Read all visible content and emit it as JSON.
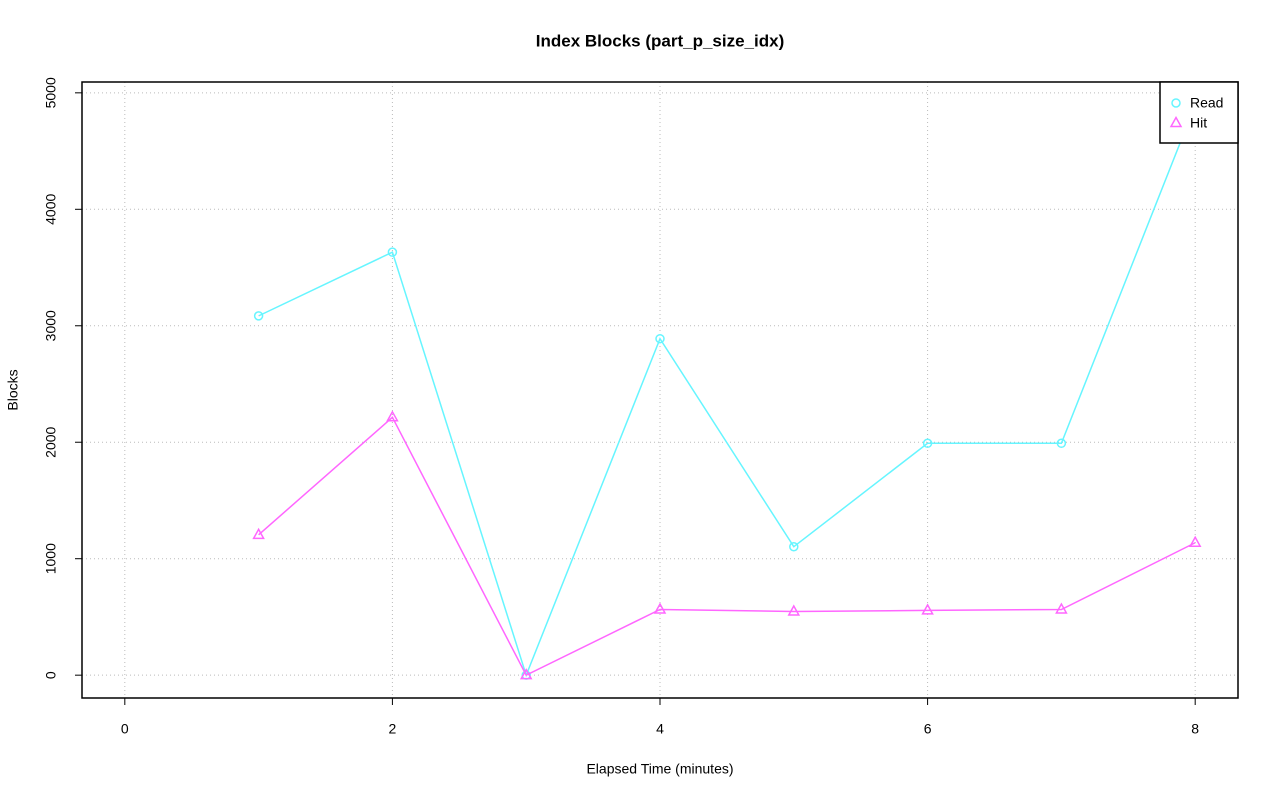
{
  "chart_data": {
    "type": "line",
    "title": "Index Blocks (part_p_size_idx)",
    "x_label": "Elapsed Time (minutes)",
    "y_label": "Blocks",
    "x": [
      1,
      2,
      3,
      4,
      5,
      6,
      7,
      8
    ],
    "series": [
      {
        "name": "Read",
        "color": "#66f5ff",
        "marker": "circle",
        "values": [
          3085,
          3632,
          0,
          2889,
          1103,
          1991,
          1991,
          4897
        ]
      },
      {
        "name": "Hit",
        "color": "#ff66ff",
        "marker": "triangle",
        "values": [
          1205,
          2214,
          0,
          564,
          547,
          556,
          564,
          1137
        ]
      }
    ],
    "xlim": [
      -0.32,
      8.32
    ],
    "xticks": [
      0,
      2,
      4,
      6,
      8
    ],
    "ylim": [
      -196,
      5093
    ],
    "yticks": [
      0,
      1000,
      2000,
      3000,
      4000,
      5000
    ],
    "grid": true,
    "legend": "topright"
  }
}
